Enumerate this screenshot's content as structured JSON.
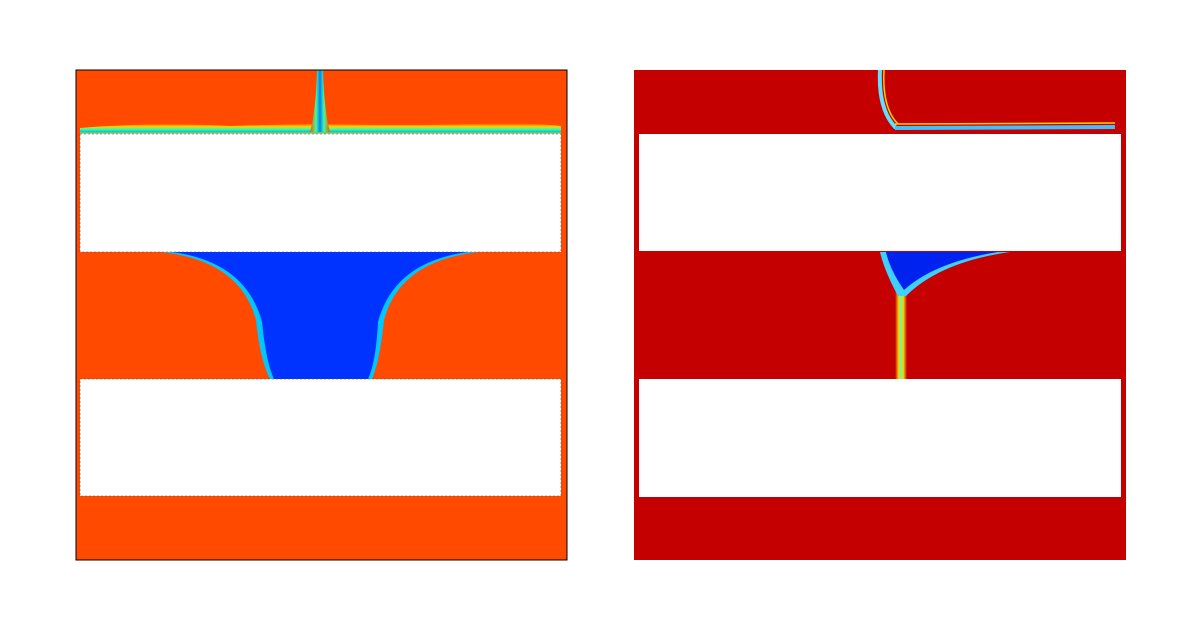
{
  "panels": [
    {
      "background_color": "#FF4A00",
      "intrusion_color": "#0033FF",
      "obstacle_color": "#FFFFFF",
      "framed": true
    },
    {
      "background_color": "#C40000",
      "intrusion_color": "#0022EE",
      "obstacle_color": "#FFFFFF",
      "framed": false
    }
  ]
}
